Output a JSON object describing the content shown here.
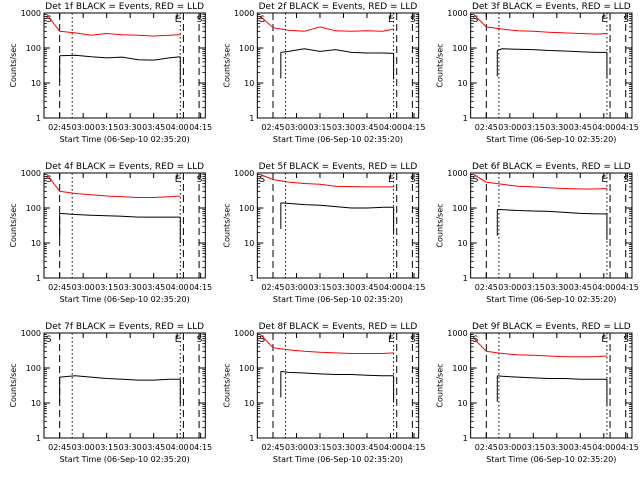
{
  "chart_data": [
    {
      "type": "line",
      "title": "Det 1f BLACK = Events, RED = LLD",
      "xlabel": "Start Time (06-Sep-10 02:35:20)",
      "ylabel": "Counts/sec",
      "yscale": "log",
      "ylim": [
        1,
        1000
      ],
      "xlim": [
        "02:35",
        "04:18"
      ],
      "xticks": [
        "02:45",
        "03:00",
        "03:15",
        "03:30",
        "03:45",
        "04:00",
        "04:15"
      ],
      "yticks": [
        "1",
        "10",
        "100",
        "1000"
      ],
      "grid": false,
      "markers": {
        "S_left": "02:35",
        "dashed": [
          "02:45",
          "04:04",
          "04:14"
        ],
        "dotted": [
          "02:53",
          "04:02"
        ],
        "E": "04:01",
        "S_right": "04:15"
      },
      "series": [
        {
          "color": "#ff0000",
          "x": [
            "02:37",
            "02:45",
            "02:55",
            "03:05",
            "03:15",
            "03:25",
            "03:35",
            "03:45",
            "03:55",
            "04:02"
          ],
          "y": [
            900,
            300,
            270,
            230,
            260,
            240,
            230,
            220,
            230,
            240
          ]
        },
        {
          "color": "#000000",
          "x": [
            "02:45",
            "02:55",
            "03:05",
            "03:15",
            "03:25",
            "03:35",
            "03:45",
            "03:55",
            "04:02"
          ],
          "y": [
            60,
            62,
            56,
            52,
            55,
            46,
            45,
            52,
            56
          ]
        }
      ]
    },
    {
      "type": "line",
      "title": "Det 2f BLACK = Events, RED = LLD",
      "xlabel": "Start Time (06-Sep-10 02:35:20)",
      "ylabel": "Counts/sec",
      "yscale": "log",
      "ylim": [
        1,
        1000
      ],
      "xlim": [
        "02:35",
        "04:18"
      ],
      "xticks": [
        "02:45",
        "03:00",
        "03:15",
        "03:30",
        "03:45",
        "04:00",
        "04:15"
      ],
      "yticks": [
        "1",
        "10",
        "100",
        "1000"
      ],
      "grid": false,
      "markers": {
        "S_left": "02:35",
        "dashed": [
          "02:45",
          "04:04",
          "04:14"
        ],
        "dotted": [
          "02:53",
          "04:02"
        ],
        "E": "04:01",
        "S_right": "04:15"
      },
      "series": [
        {
          "color": "#ff0000",
          "x": [
            "02:37",
            "02:45",
            "02:55",
            "03:05",
            "03:15",
            "03:25",
            "03:35",
            "03:45",
            "03:55",
            "04:02"
          ],
          "y": [
            800,
            380,
            320,
            300,
            400,
            310,
            300,
            310,
            300,
            350
          ]
        },
        {
          "color": "#000000",
          "x": [
            "02:50",
            "02:55",
            "03:05",
            "03:15",
            "03:25",
            "03:35",
            "03:45",
            "03:55",
            "04:02"
          ],
          "y": [
            75,
            80,
            95,
            80,
            90,
            75,
            72,
            72,
            70
          ]
        }
      ]
    },
    {
      "type": "line",
      "title": "Det 3f BLACK = Events, RED = LLD",
      "xlabel": "Start Time (06-Sep-10 02:35:20)",
      "ylabel": "Counts/sec",
      "yscale": "log",
      "ylim": [
        1,
        1000
      ],
      "xlim": [
        "02:35",
        "04:18"
      ],
      "xticks": [
        "02:45",
        "03:00",
        "03:15",
        "03:30",
        "03:45",
        "04:00",
        "04:15"
      ],
      "yticks": [
        "1",
        "10",
        "100",
        "1000"
      ],
      "grid": false,
      "markers": {
        "S_left": "02:35",
        "dashed": [
          "02:45",
          "04:04",
          "04:14"
        ],
        "dotted": [
          "02:53",
          "04:02"
        ],
        "E": "04:01",
        "S_right": "04:15"
      },
      "series": [
        {
          "color": "#ff0000",
          "x": [
            "02:37",
            "02:45",
            "02:55",
            "03:05",
            "03:15",
            "03:25",
            "03:35",
            "03:45",
            "03:55",
            "04:02"
          ],
          "y": [
            900,
            400,
            350,
            310,
            300,
            280,
            270,
            260,
            250,
            260
          ]
        },
        {
          "color": "#000000",
          "x": [
            "02:52",
            "02:55",
            "03:05",
            "03:15",
            "03:25",
            "03:35",
            "03:45",
            "03:55",
            "04:02"
          ],
          "y": [
            85,
            95,
            92,
            90,
            85,
            82,
            78,
            75,
            75
          ]
        }
      ]
    },
    {
      "type": "line",
      "title": "Det 4f BLACK = Events, RED = LLD",
      "xlabel": "Start Time (06-Sep-10 02:35:20)",
      "ylabel": "Counts/sec",
      "yscale": "log",
      "ylim": [
        1,
        1000
      ],
      "xlim": [
        "02:35",
        "04:18"
      ],
      "xticks": [
        "02:45",
        "03:00",
        "03:15",
        "03:30",
        "03:45",
        "04:00",
        "04:15"
      ],
      "yticks": [
        "1",
        "10",
        "100",
        "1000"
      ],
      "grid": false,
      "markers": {
        "S_left": "02:35",
        "dashed": [
          "02:45",
          "04:04",
          "04:14"
        ],
        "dotted": [
          "02:53",
          "04:02"
        ],
        "E": "04:01",
        "S_right": "04:15"
      },
      "series": [
        {
          "color": "#ff0000",
          "x": [
            "02:37",
            "02:45",
            "02:55",
            "03:05",
            "03:15",
            "03:25",
            "03:35",
            "03:45",
            "03:55",
            "04:02"
          ],
          "y": [
            900,
            300,
            260,
            240,
            220,
            210,
            200,
            200,
            210,
            220
          ]
        },
        {
          "color": "#000000",
          "x": [
            "02:45",
            "02:55",
            "03:05",
            "03:15",
            "03:25",
            "03:35",
            "03:45",
            "03:55",
            "04:02"
          ],
          "y": [
            70,
            65,
            62,
            60,
            58,
            55,
            55,
            55,
            55
          ]
        }
      ]
    },
    {
      "type": "line",
      "title": "Det 5f BLACK = Events, RED = LLD",
      "xlabel": "Start Time (06-Sep-10 02:35:20)",
      "ylabel": "Counts/sec",
      "yscale": "log",
      "ylim": [
        1,
        1000
      ],
      "xlim": [
        "02:35",
        "04:18"
      ],
      "xticks": [
        "02:45",
        "03:00",
        "03:15",
        "03:30",
        "03:45",
        "04:00",
        "04:15"
      ],
      "yticks": [
        "1",
        "10",
        "100",
        "1000"
      ],
      "grid": false,
      "markers": {
        "S_left": "02:35",
        "dashed": [
          "02:45",
          "04:04",
          "04:14"
        ],
        "dotted": [
          "02:53",
          "04:02"
        ],
        "E": "04:01",
        "S_right": "04:15"
      },
      "series": [
        {
          "color": "#ff0000",
          "x": [
            "02:37",
            "02:45",
            "02:55",
            "03:05",
            "03:15",
            "03:25",
            "03:35",
            "03:45",
            "03:55",
            "04:02"
          ],
          "y": [
            900,
            650,
            550,
            500,
            480,
            420,
            410,
            400,
            400,
            400
          ]
        },
        {
          "color": "#000000",
          "x": [
            "02:50",
            "02:55",
            "03:05",
            "03:15",
            "03:25",
            "03:35",
            "03:45",
            "03:55",
            "04:02"
          ],
          "y": [
            140,
            135,
            125,
            120,
            110,
            100,
            100,
            105,
            105
          ]
        }
      ]
    },
    {
      "type": "line",
      "title": "Det 6f BLACK = Events, RED = LLD",
      "xlabel": "Start Time (06-Sep-10 02:35:20)",
      "ylabel": "Counts/sec",
      "yscale": "log",
      "ylim": [
        1,
        1000
      ],
      "xlim": [
        "02:35",
        "04:18"
      ],
      "xticks": [
        "02:45",
        "03:00",
        "03:15",
        "03:30",
        "03:45",
        "04:00",
        "04:15"
      ],
      "yticks": [
        "1",
        "10",
        "100",
        "1000"
      ],
      "grid": false,
      "markers": {
        "S_left": "02:35",
        "dashed": [
          "02:45",
          "04:04",
          "04:14"
        ],
        "dotted": [
          "02:53",
          "04:02"
        ],
        "E": "04:01",
        "S_right": "04:15"
      },
      "series": [
        {
          "color": "#ff0000",
          "x": [
            "02:37",
            "02:45",
            "02:55",
            "03:05",
            "03:15",
            "03:25",
            "03:35",
            "03:45",
            "03:55",
            "04:02"
          ],
          "y": [
            900,
            550,
            480,
            420,
            400,
            380,
            360,
            350,
            350,
            360
          ]
        },
        {
          "color": "#000000",
          "x": [
            "02:52",
            "02:55",
            "03:05",
            "03:15",
            "03:25",
            "03:35",
            "03:45",
            "03:55",
            "04:02"
          ],
          "y": [
            90,
            90,
            85,
            82,
            80,
            75,
            70,
            68,
            68
          ]
        }
      ]
    },
    {
      "type": "line",
      "title": "Det 7f BLACK = Events, RED = LLD",
      "xlabel": "Start Time (06-Sep-10 02:35:20)",
      "ylabel": "Counts/sec",
      "yscale": "log",
      "ylim": [
        1,
        1000
      ],
      "xlim": [
        "02:35",
        "04:18"
      ],
      "xticks": [
        "02:45",
        "03:00",
        "03:15",
        "03:30",
        "03:45",
        "04:00",
        "04:15"
      ],
      "yticks": [
        "1",
        "10",
        "100",
        "1000"
      ],
      "grid": false,
      "markers": {
        "S_left": "02:35",
        "dashed": [
          "02:45",
          "04:04",
          "04:14"
        ],
        "dotted": [
          "02:53",
          "04:02"
        ],
        "E": "04:01",
        "S_right": "04:15"
      },
      "series": [
        {
          "color": "#000000",
          "x": [
            "02:45",
            "02:55",
            "03:05",
            "03:15",
            "03:25",
            "03:35",
            "03:45",
            "03:55",
            "04:02"
          ],
          "y": [
            55,
            60,
            55,
            50,
            48,
            45,
            45,
            48,
            48
          ]
        }
      ]
    },
    {
      "type": "line",
      "title": "Det 8f BLACK = Events, RED = LLD",
      "xlabel": "Start Time (06-Sep-10 02:35:20)",
      "ylabel": "Counts/sec",
      "yscale": "log",
      "ylim": [
        1,
        1000
      ],
      "xlim": [
        "02:35",
        "04:18"
      ],
      "xticks": [
        "02:45",
        "03:00",
        "03:15",
        "03:30",
        "03:45",
        "04:00",
        "04:15"
      ],
      "yticks": [
        "1",
        "10",
        "100",
        "1000"
      ],
      "grid": false,
      "markers": {
        "S_left": "02:35",
        "dashed": [
          "02:45",
          "04:04",
          "04:14"
        ],
        "dotted": [
          "02:53",
          "04:02"
        ],
        "E": "04:01",
        "S_right": "04:15"
      },
      "series": [
        {
          "color": "#ff0000",
          "x": [
            "02:37",
            "02:45",
            "02:55",
            "03:05",
            "03:15",
            "03:25",
            "03:35",
            "03:45",
            "03:55",
            "04:02"
          ],
          "y": [
            900,
            380,
            330,
            300,
            280,
            270,
            260,
            260,
            260,
            270
          ]
        },
        {
          "color": "#000000",
          "x": [
            "02:50",
            "02:55",
            "03:05",
            "03:15",
            "03:25",
            "03:35",
            "03:45",
            "03:55",
            "04:02"
          ],
          "y": [
            80,
            75,
            72,
            68,
            65,
            65,
            62,
            60,
            60
          ]
        }
      ]
    },
    {
      "type": "line",
      "title": "Det 9f BLACK = Events, RED = LLD",
      "xlabel": "Start Time (06-Sep-10 02:35:20)",
      "ylabel": "Counts/sec",
      "yscale": "log",
      "ylim": [
        1,
        1000
      ],
      "xlim": [
        "02:35",
        "04:18"
      ],
      "xticks": [
        "02:45",
        "03:00",
        "03:15",
        "03:30",
        "03:45",
        "04:00",
        "04:15"
      ],
      "yticks": [
        "1",
        "10",
        "100",
        "1000"
      ],
      "grid": false,
      "markers": {
        "S_left": "02:35",
        "dashed": [
          "02:45",
          "04:04",
          "04:14"
        ],
        "dotted": [
          "02:53",
          "04:02"
        ],
        "E": "04:01",
        "S_right": "04:15"
      },
      "series": [
        {
          "color": "#ff0000",
          "x": [
            "02:37",
            "02:45",
            "02:55",
            "03:05",
            "03:15",
            "03:25",
            "03:35",
            "03:45",
            "03:55",
            "04:02"
          ],
          "y": [
            700,
            300,
            260,
            240,
            230,
            220,
            210,
            210,
            210,
            220
          ]
        },
        {
          "color": "#000000",
          "x": [
            "02:52",
            "02:55",
            "03:05",
            "03:15",
            "03:25",
            "03:35",
            "03:45",
            "03:55",
            "04:02"
          ],
          "y": [
            60,
            58,
            55,
            52,
            50,
            50,
            48,
            48,
            48
          ]
        }
      ]
    }
  ]
}
